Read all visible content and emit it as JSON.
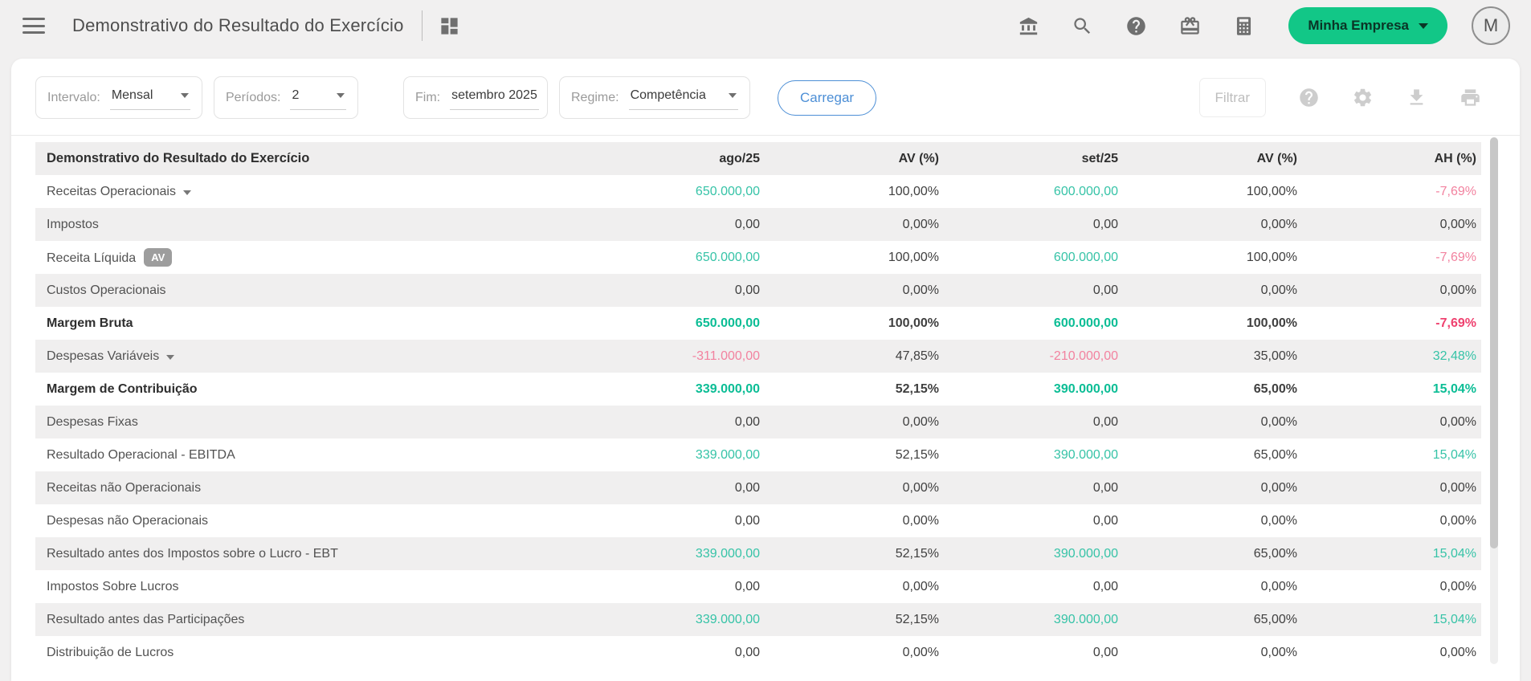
{
  "topbar": {
    "title": "Demonstrativo do Resultado do Exercício",
    "icons": [
      "menu-icon",
      "dashboard-icon",
      "bank-icon",
      "search-icon",
      "help-icon",
      "gift-icon",
      "calculator-icon"
    ],
    "company_button": "Minha Empresa",
    "avatar_initial": "M"
  },
  "filters": {
    "fields": [
      {
        "label": "Intervalo:",
        "value": "Mensal"
      },
      {
        "label": "Períodos:",
        "value": "2"
      },
      {
        "label": "Fim:",
        "value": "setembro 2025"
      },
      {
        "label": "Regime:",
        "value": "Competência"
      }
    ],
    "load_button": "Carregar",
    "filter_button": "Filtrar",
    "action_icons": [
      "help-icon",
      "settings-icon",
      "download-icon",
      "print-icon"
    ]
  },
  "colors": {
    "accent_green": "#12c787",
    "positive_teal": "#36c3a7",
    "negative_pink": "#f2829f",
    "load_button_blue": "#4d8fd6",
    "row_stripe": "#f0efef"
  },
  "table": {
    "header": {
      "title": "Demonstrativo do Resultado do Exercício",
      "columns": [
        "ago/25",
        "AV (%)",
        "set/25",
        "AV (%)",
        "AH (%)"
      ]
    },
    "rows": [
      {
        "label": "Receitas Operacionais",
        "caret": true,
        "cells": [
          {
            "v": "650.000,00",
            "c": "teal"
          },
          {
            "v": "100,00%",
            "c": "dark"
          },
          {
            "v": "600.000,00",
            "c": "teal"
          },
          {
            "v": "100,00%",
            "c": "dark"
          },
          {
            "v": "-7,69%",
            "c": "pink"
          }
        ]
      },
      {
        "label": "Impostos",
        "cells": [
          {
            "v": "0,00",
            "c": "dark"
          },
          {
            "v": "0,00%",
            "c": "dark"
          },
          {
            "v": "0,00",
            "c": "dark"
          },
          {
            "v": "0,00%",
            "c": "dark"
          },
          {
            "v": "0,00%",
            "c": "dark"
          }
        ]
      },
      {
        "label": "Receita Líquida",
        "badge": "AV",
        "cells": [
          {
            "v": "650.000,00",
            "c": "teal"
          },
          {
            "v": "100,00%",
            "c": "dark"
          },
          {
            "v": "600.000,00",
            "c": "teal"
          },
          {
            "v": "100,00%",
            "c": "dark"
          },
          {
            "v": "-7,69%",
            "c": "pink"
          }
        ]
      },
      {
        "label": "Custos Operacionais",
        "cells": [
          {
            "v": "0,00",
            "c": "dark"
          },
          {
            "v": "0,00%",
            "c": "dark"
          },
          {
            "v": "0,00",
            "c": "dark"
          },
          {
            "v": "0,00%",
            "c": "dark"
          },
          {
            "v": "0,00%",
            "c": "dark"
          }
        ]
      },
      {
        "label": "Margem Bruta",
        "bold": true,
        "cells": [
          {
            "v": "650.000,00",
            "c": "teal"
          },
          {
            "v": "100,00%",
            "c": "dark"
          },
          {
            "v": "600.000,00",
            "c": "teal"
          },
          {
            "v": "100,00%",
            "c": "dark"
          },
          {
            "v": "-7,69%",
            "c": "pink"
          }
        ]
      },
      {
        "label": "Despesas Variáveis",
        "caret": true,
        "cells": [
          {
            "v": "-311.000,00",
            "c": "pink"
          },
          {
            "v": "47,85%",
            "c": "dark"
          },
          {
            "v": "-210.000,00",
            "c": "pink"
          },
          {
            "v": "35,00%",
            "c": "dark"
          },
          {
            "v": "32,48%",
            "c": "teal"
          }
        ]
      },
      {
        "label": "Margem de Contribuição",
        "bold": true,
        "cells": [
          {
            "v": "339.000,00",
            "c": "teal"
          },
          {
            "v": "52,15%",
            "c": "dark"
          },
          {
            "v": "390.000,00",
            "c": "teal"
          },
          {
            "v": "65,00%",
            "c": "dark"
          },
          {
            "v": "15,04%",
            "c": "teal"
          }
        ]
      },
      {
        "label": "Despesas Fixas",
        "cells": [
          {
            "v": "0,00",
            "c": "dark"
          },
          {
            "v": "0,00%",
            "c": "dark"
          },
          {
            "v": "0,00",
            "c": "dark"
          },
          {
            "v": "0,00%",
            "c": "dark"
          },
          {
            "v": "0,00%",
            "c": "dark"
          }
        ]
      },
      {
        "label": "Resultado Operacional - EBITDA",
        "cells": [
          {
            "v": "339.000,00",
            "c": "teal"
          },
          {
            "v": "52,15%",
            "c": "dark"
          },
          {
            "v": "390.000,00",
            "c": "teal"
          },
          {
            "v": "65,00%",
            "c": "dark"
          },
          {
            "v": "15,04%",
            "c": "teal"
          }
        ]
      },
      {
        "label": "Receitas não Operacionais",
        "cells": [
          {
            "v": "0,00",
            "c": "dark"
          },
          {
            "v": "0,00%",
            "c": "dark"
          },
          {
            "v": "0,00",
            "c": "dark"
          },
          {
            "v": "0,00%",
            "c": "dark"
          },
          {
            "v": "0,00%",
            "c": "dark"
          }
        ]
      },
      {
        "label": "Despesas não Operacionais",
        "cells": [
          {
            "v": "0,00",
            "c": "dark"
          },
          {
            "v": "0,00%",
            "c": "dark"
          },
          {
            "v": "0,00",
            "c": "dark"
          },
          {
            "v": "0,00%",
            "c": "dark"
          },
          {
            "v": "0,00%",
            "c": "dark"
          }
        ]
      },
      {
        "label": "Resultado antes dos Impostos sobre o Lucro - EBT",
        "cells": [
          {
            "v": "339.000,00",
            "c": "teal"
          },
          {
            "v": "52,15%",
            "c": "dark"
          },
          {
            "v": "390.000,00",
            "c": "teal"
          },
          {
            "v": "65,00%",
            "c": "dark"
          },
          {
            "v": "15,04%",
            "c": "teal"
          }
        ]
      },
      {
        "label": "Impostos Sobre Lucros",
        "cells": [
          {
            "v": "0,00",
            "c": "dark"
          },
          {
            "v": "0,00%",
            "c": "dark"
          },
          {
            "v": "0,00",
            "c": "dark"
          },
          {
            "v": "0,00%",
            "c": "dark"
          },
          {
            "v": "0,00%",
            "c": "dark"
          }
        ]
      },
      {
        "label": "Resultado antes das Participações",
        "cells": [
          {
            "v": "339.000,00",
            "c": "teal"
          },
          {
            "v": "52,15%",
            "c": "dark"
          },
          {
            "v": "390.000,00",
            "c": "teal"
          },
          {
            "v": "65,00%",
            "c": "dark"
          },
          {
            "v": "15,04%",
            "c": "teal"
          }
        ]
      },
      {
        "label": "Distribuição de Lucros",
        "cells": [
          {
            "v": "0,00",
            "c": "dark"
          },
          {
            "v": "0,00%",
            "c": "dark"
          },
          {
            "v": "0,00",
            "c": "dark"
          },
          {
            "v": "0,00%",
            "c": "dark"
          },
          {
            "v": "0,00%",
            "c": "dark"
          }
        ]
      }
    ]
  }
}
